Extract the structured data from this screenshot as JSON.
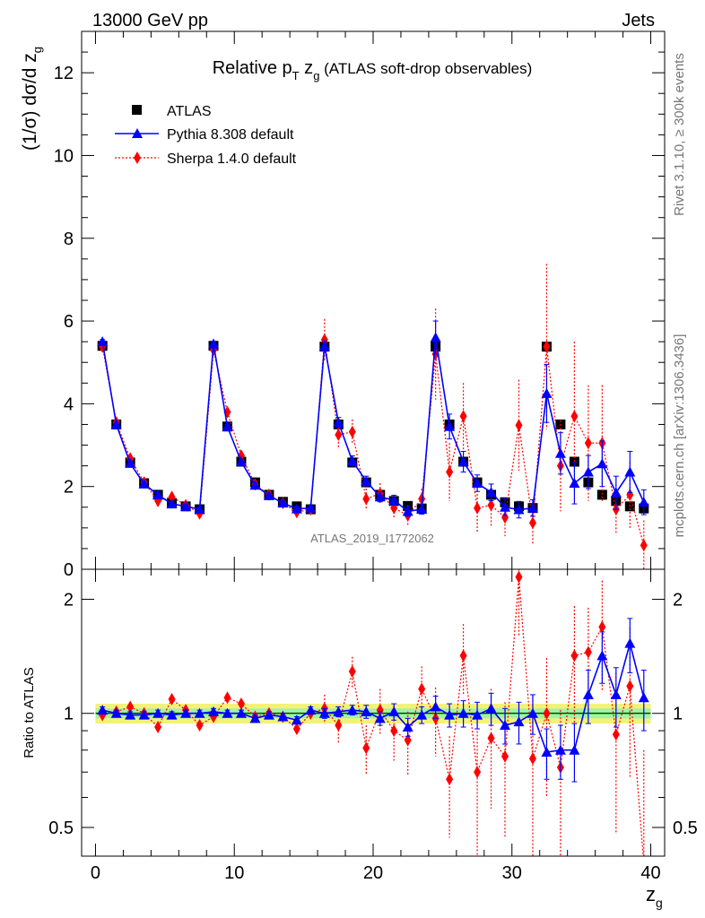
{
  "header": {
    "left": "13000 GeV pp",
    "right": "Jets"
  },
  "side": {
    "rivet": "Rivet 3.1.10, ≥ 300k events",
    "mcplots": "mcplots.cern.ch [arXiv:1306.3436]"
  },
  "colors": {
    "atlas": "#000000",
    "pythia": "#0000ff",
    "sherpa": "#ff0000",
    "band_inner": "#a6f0a6",
    "band_outer": "#f2f27a",
    "ref_line": "#00aa00"
  },
  "chart_data": {
    "type": "line",
    "title_prefix": "Relative p",
    "title_sub": "T",
    "title_mid": " z",
    "title_sub2": "g",
    "title_suffix": " (ATLAS soft-drop observables)",
    "watermark": "ATLAS_2019_I1772062",
    "xlabel": "z",
    "xlabel_sub": "g",
    "ylabel": "(1/σ) dσ/d z",
    "ylabel_sub": "g",
    "ratio_ylabel": "Ratio to ATLAS",
    "xlim": [
      -1,
      41
    ],
    "ylim": [
      0,
      13
    ],
    "ratio_ylim": [
      0.42,
      2.4
    ],
    "xticks": [
      0,
      10,
      20,
      30,
      40
    ],
    "yticks": [
      0,
      2,
      4,
      6,
      8,
      10,
      12
    ],
    "ratio_yticks": [
      0.5,
      1,
      2
    ],
    "ratio_ytick_labels": [
      "0.5",
      "1",
      "2"
    ],
    "legend": [
      "ATLAS",
      "Pythia 8.308 default",
      "Sherpa 1.4.0 default"
    ],
    "x": [
      0.5,
      1.5,
      2.5,
      3.5,
      4.5,
      5.5,
      6.5,
      7.5,
      8.5,
      9.5,
      10.5,
      11.5,
      12.5,
      13.5,
      14.5,
      15.5,
      16.5,
      17.5,
      18.5,
      19.5,
      20.5,
      21.5,
      22.5,
      23.5,
      24.5,
      25.5,
      26.5,
      27.5,
      28.5,
      29.5,
      30.5,
      31.5,
      32.5,
      33.5,
      34.5,
      35.5,
      36.5,
      37.5,
      38.5,
      39.5
    ],
    "series": [
      {
        "name": "ATLAS",
        "values": [
          5.4,
          3.5,
          2.58,
          2.08,
          1.8,
          1.6,
          1.52,
          1.45,
          5.4,
          3.45,
          2.6,
          2.1,
          1.8,
          1.63,
          1.52,
          1.45,
          5.38,
          3.5,
          2.58,
          2.1,
          1.8,
          1.65,
          1.53,
          1.47,
          5.38,
          3.5,
          2.6,
          2.1,
          1.8,
          1.62,
          1.52,
          1.48,
          5.38,
          3.5,
          2.6,
          2.1,
          1.8,
          1.65,
          1.52,
          1.47
        ]
      },
      {
        "name": "Pythia 8.308 default",
        "values": [
          5.5,
          3.5,
          2.56,
          2.06,
          1.8,
          1.58,
          1.52,
          1.45,
          5.45,
          3.45,
          2.6,
          2.03,
          1.78,
          1.6,
          1.46,
          1.48,
          5.4,
          3.55,
          2.62,
          2.13,
          1.75,
          1.67,
          1.4,
          1.45,
          5.6,
          3.45,
          2.6,
          2.08,
          1.86,
          1.5,
          1.44,
          1.48,
          4.25,
          2.8,
          2.08,
          2.35,
          2.55,
          1.85,
          2.35,
          1.62
        ],
        "err": [
          0.05,
          0.05,
          0.05,
          0.05,
          0.05,
          0.05,
          0.05,
          0.05,
          0.05,
          0.05,
          0.05,
          0.05,
          0.05,
          0.05,
          0.05,
          0.05,
          0.12,
          0.12,
          0.12,
          0.12,
          0.12,
          0.12,
          0.12,
          0.12,
          0.4,
          0.3,
          0.25,
          0.2,
          0.2,
          0.2,
          0.2,
          0.2,
          0.7,
          0.5,
          0.5,
          0.4,
          0.55,
          0.4,
          0.5,
          0.3
        ]
      },
      {
        "name": "Sherpa 1.4.0 default",
        "values": [
          5.38,
          3.55,
          2.68,
          2.1,
          1.65,
          1.75,
          1.55,
          1.35,
          5.3,
          3.8,
          2.75,
          2.05,
          1.8,
          1.6,
          1.38,
          1.45,
          5.55,
          3.25,
          3.32,
          1.7,
          1.83,
          1.48,
          1.3,
          1.7,
          5.2,
          2.35,
          3.7,
          1.48,
          1.55,
          1.25,
          3.48,
          1.12,
          5.38,
          2.5,
          3.7,
          3.05,
          3.05,
          1.45,
          1.8,
          0.58
        ],
        "err": [
          0.05,
          0.05,
          0.05,
          0.06,
          0.06,
          0.06,
          0.06,
          0.06,
          0.06,
          0.07,
          0.07,
          0.07,
          0.07,
          0.07,
          0.07,
          0.07,
          0.5,
          0.35,
          0.3,
          0.25,
          0.25,
          0.25,
          0.25,
          0.25,
          1.1,
          0.7,
          0.8,
          0.6,
          0.5,
          0.45,
          1.1,
          0.5,
          2.0,
          1.1,
          1.8,
          1.4,
          1.4,
          0.6,
          0.8,
          0.6
        ]
      }
    ],
    "ratio": {
      "pythia": [
        1.02,
        1.0,
        0.99,
        0.99,
        1.0,
        0.99,
        1.0,
        1.0,
        1.01,
        1.0,
        1.0,
        0.97,
        0.99,
        0.98,
        0.96,
        1.02,
        1.0,
        1.01,
        1.02,
        1.01,
        0.97,
        1.01,
        0.92,
        0.99,
        1.04,
        0.99,
        1.0,
        0.99,
        1.03,
        0.93,
        0.95,
        1.0,
        0.79,
        0.8,
        0.8,
        1.12,
        1.42,
        1.12,
        1.53,
        1.1
      ],
      "pythia_err": [
        0.02,
        0.02,
        0.02,
        0.02,
        0.02,
        0.02,
        0.02,
        0.02,
        0.02,
        0.02,
        0.02,
        0.02,
        0.02,
        0.02,
        0.02,
        0.02,
        0.03,
        0.03,
        0.03,
        0.04,
        0.04,
        0.05,
        0.05,
        0.05,
        0.07,
        0.07,
        0.08,
        0.08,
        0.1,
        0.1,
        0.12,
        0.12,
        0.12,
        0.13,
        0.14,
        0.18,
        0.22,
        0.2,
        0.25,
        0.2
      ],
      "sherpa": [
        0.99,
        1.01,
        1.04,
        1.0,
        0.92,
        1.09,
        1.02,
        0.93,
        0.98,
        1.1,
        1.06,
        0.98,
        1.0,
        0.98,
        0.91,
        1.0,
        1.03,
        0.93,
        1.29,
        0.81,
        1.02,
        0.9,
        0.85,
        1.16,
        0.97,
        0.67,
        1.42,
        0.7,
        0.86,
        0.77,
        2.29,
        0.76,
        1.0,
        0.72,
        1.42,
        1.45,
        1.69,
        0.88,
        1.18,
        0.4
      ],
      "sherpa_err": [
        0.02,
        0.02,
        0.02,
        0.03,
        0.03,
        0.03,
        0.03,
        0.03,
        0.03,
        0.03,
        0.03,
        0.03,
        0.03,
        0.03,
        0.04,
        0.04,
        0.09,
        0.1,
        0.12,
        0.12,
        0.14,
        0.15,
        0.16,
        0.17,
        0.2,
        0.2,
        0.3,
        0.28,
        0.3,
        0.3,
        0.7,
        0.35,
        0.4,
        0.3,
        0.5,
        0.45,
        0.55,
        0.4,
        0.5,
        0.4
      ]
    }
  }
}
